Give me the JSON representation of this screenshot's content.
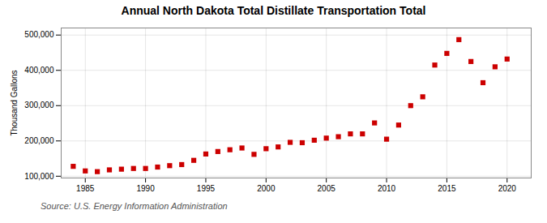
{
  "chart_data": {
    "type": "scatter",
    "title": "Annual North Dakota Total Distillate Transportation Total",
    "ylabel": "Thousand Gallons",
    "annotations": [
      "Source: U.S. Energy Information Administration"
    ],
    "x": [
      1984,
      1985,
      1986,
      1987,
      1988,
      1989,
      1990,
      1991,
      1992,
      1993,
      1994,
      1995,
      1996,
      1997,
      1998,
      1999,
      2000,
      2001,
      2002,
      2003,
      2004,
      2005,
      2006,
      2007,
      2008,
      2009,
      2010,
      2011,
      2012,
      2013,
      2014,
      2015,
      2016,
      2017,
      2018,
      2019,
      2020
    ],
    "values": [
      128000,
      115000,
      113000,
      118000,
      120000,
      122000,
      122000,
      126000,
      130000,
      133000,
      145000,
      163000,
      170000,
      175000,
      180000,
      162000,
      178000,
      183000,
      196000,
      195000,
      202000,
      208000,
      212000,
      220000,
      220000,
      251000,
      205000,
      245000,
      300000,
      325000,
      415000,
      448000,
      487000,
      425000,
      365000,
      410000,
      432000
    ],
    "color": "#cc0000",
    "marker": "square",
    "grid": true,
    "xlim": [
      1983,
      2022
    ],
    "xticks": [
      1985,
      1990,
      1995,
      2000,
      2005,
      2010,
      2015,
      2020
    ],
    "ylim": [
      95000,
      520000
    ],
    "yticks": [
      {
        "value": 100000,
        "label": "100,000"
      },
      {
        "value": 200000,
        "label": "200,000"
      },
      {
        "value": 300000,
        "label": "300,000"
      },
      {
        "value": 400000,
        "label": "400,000"
      },
      {
        "value": 500000,
        "label": "500,000"
      }
    ]
  }
}
